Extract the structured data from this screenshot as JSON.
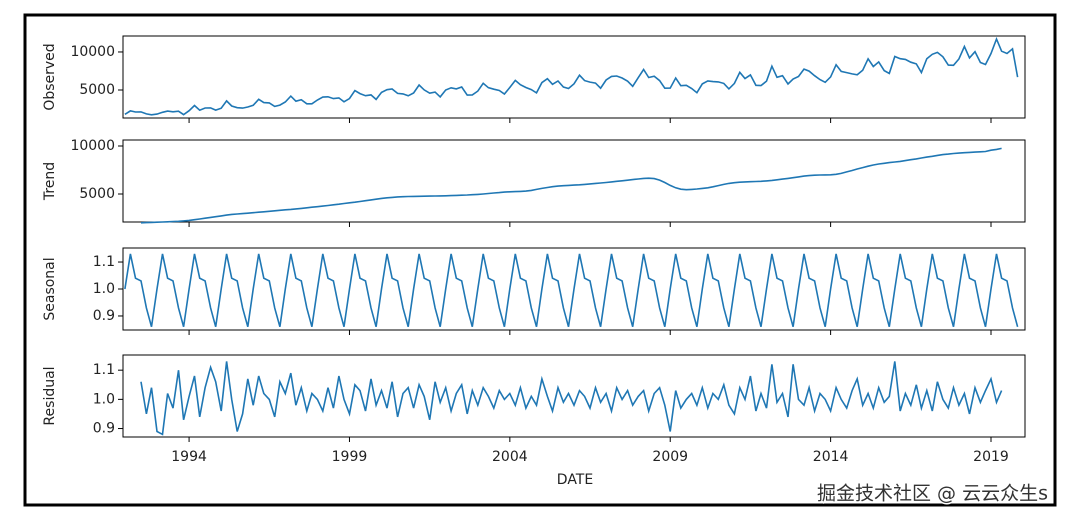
{
  "chart_data": {
    "type": "line",
    "color": "#1f77b4",
    "xlabel": "DATE",
    "xlim": [
      1991.94,
      2020.06
    ],
    "xticks": [
      1994,
      1999,
      2004,
      2009,
      2014,
      2019
    ],
    "x": [
      1992,
      1992.17,
      1992.33,
      1992.5,
      1992.67,
      1992.83,
      1993,
      1993.17,
      1993.33,
      1993.5,
      1993.67,
      1993.83,
      1994,
      1994.17,
      1994.33,
      1994.5,
      1994.67,
      1994.83,
      1995,
      1995.17,
      1995.33,
      1995.5,
      1995.67,
      1995.83,
      1996,
      1996.17,
      1996.33,
      1996.5,
      1996.67,
      1996.83,
      1997,
      1997.17,
      1997.33,
      1997.5,
      1997.67,
      1997.83,
      1998,
      1998.17,
      1998.33,
      1998.5,
      1998.67,
      1998.83,
      1999,
      1999.17,
      1999.33,
      1999.5,
      1999.67,
      1999.83,
      2000,
      2000.17,
      2000.33,
      2000.5,
      2000.67,
      2000.83,
      2001,
      2001.17,
      2001.33,
      2001.5,
      2001.67,
      2001.83,
      2002,
      2002.17,
      2002.33,
      2002.5,
      2002.67,
      2002.83,
      2003,
      2003.17,
      2003.33,
      2003.5,
      2003.67,
      2003.83,
      2004,
      2004.17,
      2004.33,
      2004.5,
      2004.67,
      2004.83,
      2005,
      2005.17,
      2005.33,
      2005.5,
      2005.67,
      2005.83,
      2006,
      2006.17,
      2006.33,
      2006.5,
      2006.67,
      2006.83,
      2007,
      2007.17,
      2007.33,
      2007.5,
      2007.67,
      2007.83,
      2008,
      2008.17,
      2008.33,
      2008.5,
      2008.67,
      2008.83,
      2009,
      2009.17,
      2009.33,
      2009.5,
      2009.67,
      2009.83,
      2010,
      2010.17,
      2010.33,
      2010.5,
      2010.67,
      2010.83,
      2011,
      2011.17,
      2011.33,
      2011.5,
      2011.67,
      2011.83,
      2012,
      2012.17,
      2012.33,
      2012.5,
      2012.67,
      2012.83,
      2013,
      2013.17,
      2013.33,
      2013.5,
      2013.67,
      2013.83,
      2014,
      2014.17,
      2014.33,
      2014.5,
      2014.67,
      2014.83,
      2015,
      2015.17,
      2015.33,
      2015.5,
      2015.67,
      2015.83,
      2016,
      2016.17,
      2016.33,
      2016.5,
      2016.67,
      2016.83,
      2017,
      2017.17,
      2017.33,
      2017.5,
      2017.67,
      2017.83,
      2018,
      2018.17,
      2018.33,
      2018.5,
      2018.67,
      2018.83,
      2019,
      2019.17,
      2019.33,
      2019.5,
      2019.67,
      2019.83
    ],
    "panels": [
      {
        "ylabel": "Observed",
        "ylim": [
          1316,
          12100
        ],
        "yticks": [
          5000,
          10000
        ],
        "values": [
          1800,
          2250,
          2100,
          2120,
          1850,
          1740,
          1830,
          2070,
          2230,
          2130,
          2210,
          1760,
          2270,
          2960,
          2340,
          2630,
          2640,
          2350,
          2610,
          3570,
          2900,
          2670,
          2620,
          2760,
          2990,
          3780,
          3340,
          3300,
          2840,
          3010,
          3420,
          4190,
          3520,
          3720,
          3180,
          3180,
          3680,
          4060,
          4110,
          3870,
          3960,
          3450,
          3880,
          4920,
          4520,
          4250,
          4360,
          3760,
          4680,
          5040,
          5130,
          4550,
          4480,
          4240,
          4610,
          5660,
          5010,
          4580,
          4720,
          4090,
          5000,
          5290,
          5140,
          5390,
          4330,
          4360,
          4860,
          5880,
          5300,
          5100,
          4930,
          4470,
          5330,
          6260,
          5700,
          5330,
          5050,
          4620,
          5970,
          6490,
          5750,
          6180,
          5390,
          5200,
          5810,
          6940,
          6240,
          6040,
          5900,
          5240,
          6320,
          6790,
          6840,
          6570,
          6160,
          5480,
          6620,
          7700,
          6640,
          6810,
          6240,
          5230,
          5250,
          6580,
          5560,
          5610,
          5200,
          4640,
          5800,
          6190,
          6100,
          6060,
          5860,
          5140,
          5870,
          7320,
          6510,
          6990,
          5620,
          5580,
          6170,
          8130,
          6670,
          6880,
          5790,
          6450,
          6780,
          7750,
          7480,
          6880,
          6370,
          6010,
          6720,
          8310,
          7440,
          7290,
          7120,
          7000,
          7600,
          9100,
          8090,
          8700,
          7550,
          7180,
          9410,
          9110,
          9020,
          8650,
          8430,
          7300,
          9110,
          9690,
          9940,
          9370,
          8270,
          8250,
          9070,
          10720,
          9220,
          10030,
          8620,
          8350,
          9800,
          11700,
          10100,
          9800,
          10400,
          6700
        ]
      },
      {
        "ylabel": "Trend",
        "ylim": [
          2083,
          10625
        ],
        "yticks": [
          5000,
          10000
        ],
        "values": [
          null,
          null,
          null,
          2000,
          2020,
          2040,
          2060,
          2080,
          2100,
          2130,
          2160,
          2200,
          2250,
          2320,
          2400,
          2480,
          2560,
          2640,
          2720,
          2800,
          2870,
          2920,
          2960,
          3000,
          3050,
          3100,
          3150,
          3200,
          3250,
          3300,
          3350,
          3400,
          3450,
          3500,
          3560,
          3620,
          3680,
          3740,
          3800,
          3870,
          3940,
          4010,
          4080,
          4150,
          4220,
          4300,
          4380,
          4460,
          4540,
          4600,
          4650,
          4700,
          4720,
          4740,
          4750,
          4760,
          4770,
          4780,
          4790,
          4800,
          4810,
          4830,
          4850,
          4870,
          4900,
          4930,
          4960,
          5000,
          5050,
          5100,
          5150,
          5200,
          5230,
          5250,
          5270,
          5300,
          5380,
          5480,
          5580,
          5680,
          5760,
          5820,
          5860,
          5900,
          5930,
          5960,
          6000,
          6050,
          6100,
          6150,
          6200,
          6260,
          6320,
          6380,
          6440,
          6500,
          6560,
          6620,
          6650,
          6600,
          6450,
          6200,
          5900,
          5650,
          5500,
          5450,
          5480,
          5520,
          5580,
          5650,
          5750,
          5880,
          6000,
          6100,
          6180,
          6230,
          6260,
          6280,
          6300,
          6320,
          6360,
          6420,
          6480,
          6550,
          6620,
          6700,
          6780,
          6860,
          6920,
          6960,
          6980,
          6990,
          7000,
          7050,
          7150,
          7300,
          7450,
          7600,
          7750,
          7900,
          8020,
          8120,
          8200,
          8270,
          8330,
          8400,
          8480,
          8570,
          8660,
          8750,
          8840,
          8930,
          9020,
          9100,
          9160,
          9220,
          9260,
          9300,
          9330,
          9360,
          9400,
          9430,
          9560,
          9650,
          9750,
          null,
          null,
          null
        ]
      },
      {
        "ylabel": "Seasonal",
        "ylim": [
          0.848,
          1.152
        ],
        "yticks": [
          0.9,
          {
            "value": 1,
            "label": "1.0"
          },
          1.1
        ],
        "values": [
          1.0,
          1.13,
          1.04,
          1.03,
          0.93,
          0.86,
          1.0,
          1.13,
          1.04,
          1.03,
          0.93,
          0.86,
          1.0,
          1.13,
          1.04,
          1.03,
          0.93,
          0.86,
          1.0,
          1.13,
          1.04,
          1.03,
          0.93,
          0.86,
          1.0,
          1.13,
          1.04,
          1.03,
          0.93,
          0.86,
          1.0,
          1.13,
          1.04,
          1.03,
          0.93,
          0.86,
          1.0,
          1.13,
          1.04,
          1.03,
          0.93,
          0.86,
          1.0,
          1.13,
          1.04,
          1.03,
          0.93,
          0.86,
          1.0,
          1.13,
          1.04,
          1.03,
          0.93,
          0.86,
          1.0,
          1.13,
          1.04,
          1.03,
          0.93,
          0.86,
          1.0,
          1.13,
          1.04,
          1.03,
          0.93,
          0.86,
          1.0,
          1.13,
          1.04,
          1.03,
          0.93,
          0.86,
          1.0,
          1.13,
          1.04,
          1.03,
          0.93,
          0.86,
          1.0,
          1.13,
          1.04,
          1.03,
          0.93,
          0.86,
          1.0,
          1.13,
          1.04,
          1.03,
          0.93,
          0.86,
          1.0,
          1.13,
          1.04,
          1.03,
          0.93,
          0.86,
          1.0,
          1.13,
          1.04,
          1.03,
          0.93,
          0.86,
          1.0,
          1.13,
          1.04,
          1.03,
          0.93,
          0.86,
          1.0,
          1.13,
          1.04,
          1.03,
          0.93,
          0.86,
          1.0,
          1.13,
          1.04,
          1.03,
          0.93,
          0.86,
          1.0,
          1.13,
          1.04,
          1.03,
          0.93,
          0.86,
          1.0,
          1.13,
          1.04,
          1.03,
          0.93,
          0.86,
          1.0,
          1.13,
          1.04,
          1.03,
          0.93,
          0.86,
          1.0,
          1.13,
          1.04,
          1.03,
          0.93,
          0.86,
          1.0,
          1.13,
          1.04,
          1.03,
          0.93,
          0.86,
          1.0,
          1.13,
          1.04,
          1.03,
          0.93,
          0.86,
          1.0,
          1.13,
          1.04,
          1.03,
          0.93,
          0.86,
          1.0,
          1.13,
          1.04,
          1.03,
          0.93,
          0.86
        ]
      },
      {
        "ylabel": "Residual",
        "ylim": [
          0.871,
          1.152
        ],
        "yticks": [
          0.9,
          {
            "value": 1,
            "label": "1.0"
          },
          1.1
        ],
        "values": [
          null,
          null,
          null,
          1.06,
          0.95,
          1.04,
          0.89,
          0.88,
          1.02,
          0.97,
          1.1,
          0.93,
          1.01,
          1.08,
          0.94,
          1.04,
          1.11,
          1.06,
          0.96,
          1.13,
          1.0,
          0.89,
          0.95,
          1.07,
          0.98,
          1.08,
          1.02,
          1.0,
          0.94,
          1.06,
          1.02,
          1.09,
          0.98,
          1.04,
          0.96,
          1.02,
          1.0,
          0.96,
          1.04,
          0.97,
          1.08,
          1.0,
          0.95,
          1.05,
          1.03,
          0.96,
          1.07,
          0.98,
          1.03,
          0.97,
          1.06,
          0.94,
          1.02,
          1.04,
          0.97,
          1.05,
          1.01,
          0.93,
          1.06,
          0.99,
          1.04,
          0.96,
          1.02,
          1.05,
          0.95,
          1.03,
          0.98,
          1.04,
          1.01,
          0.97,
          1.03,
          1.0,
          1.02,
          0.98,
          1.04,
          0.97,
          1.01,
          0.98,
          1.07,
          1.01,
          0.96,
          1.04,
          0.99,
          1.02,
          0.98,
          1.03,
          1.01,
          0.97,
          1.04,
          0.99,
          1.02,
          0.96,
          1.04,
          1.0,
          1.03,
          0.98,
          1.01,
          1.03,
          0.96,
          1.02,
          1.04,
          0.98,
          0.89,
          1.03,
          0.97,
          1.0,
          1.02,
          0.98,
          1.04,
          0.97,
          1.02,
          1.0,
          1.05,
          0.98,
          0.95,
          1.04,
          1.0,
          1.08,
          0.96,
          1.02,
          0.97,
          1.12,
          0.99,
          1.02,
          0.94,
          1.12,
          1.0,
          0.98,
          1.04,
          0.96,
          1.02,
          1.0,
          0.96,
          1.04,
          1.0,
          0.97,
          1.03,
          1.07,
          0.98,
          1.02,
          0.97,
          1.04,
          0.99,
          1.01,
          1.13,
          0.96,
          1.02,
          0.98,
          1.05,
          0.97,
          1.03,
          0.96,
          1.06,
          1.0,
          0.97,
          1.04,
          0.98,
          1.02,
          0.95,
          1.04,
          0.99,
          1.03,
          1.07,
          0.99,
          1.03,
          null,
          null,
          null
        ]
      }
    ]
  },
  "watermark": "掘金技术社区 @ 云云众生s"
}
